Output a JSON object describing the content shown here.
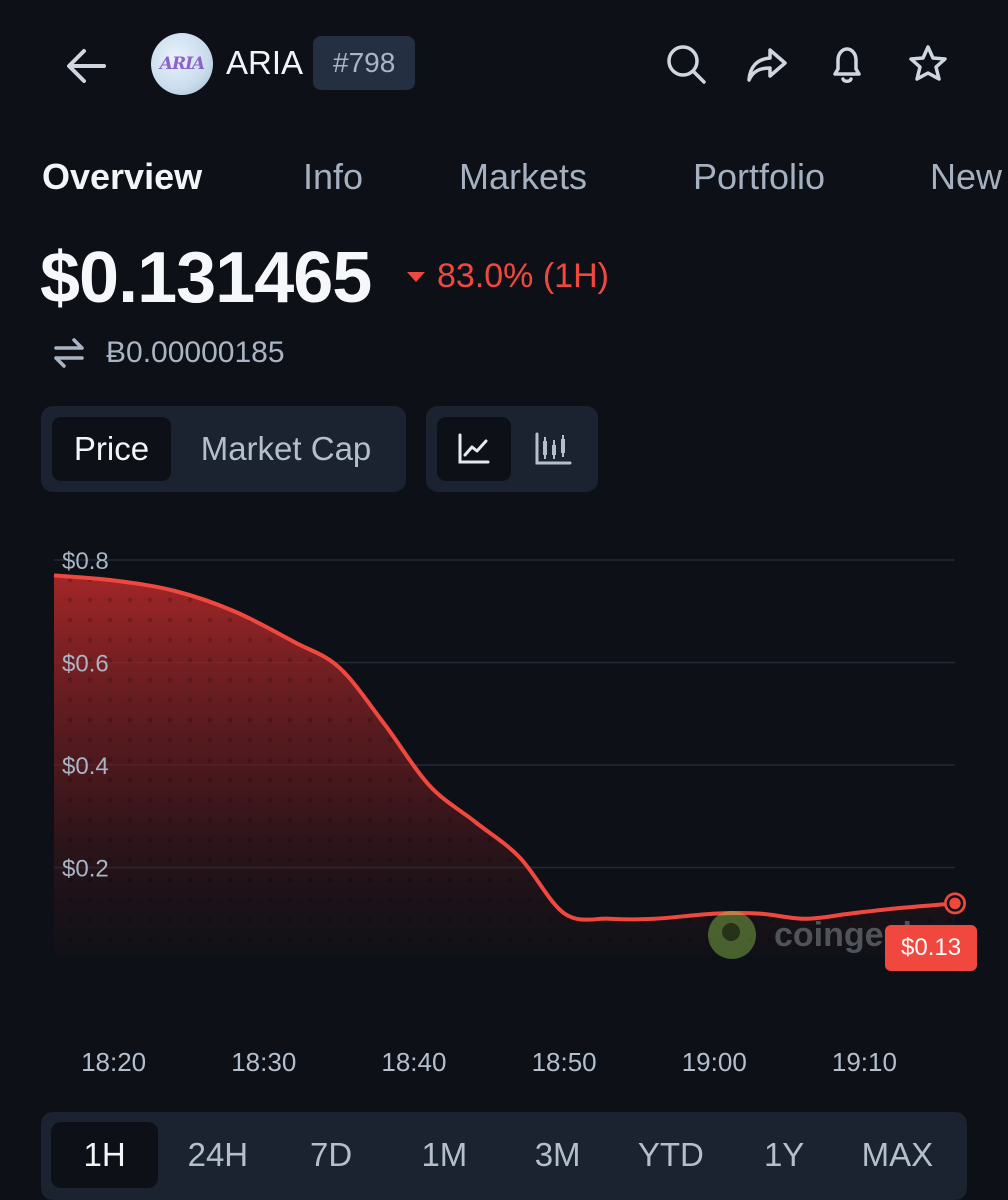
{
  "header": {
    "coin_logo_text": "ARIA",
    "coin_name": "ARIA",
    "rank": "#798",
    "icons": [
      "back-arrow-icon",
      "search-icon",
      "share-icon",
      "bell-icon",
      "star-icon"
    ]
  },
  "tabs": [
    {
      "label": "Overview",
      "active": true
    },
    {
      "label": "Info",
      "active": false
    },
    {
      "label": "Markets",
      "active": false
    },
    {
      "label": "Portfolio",
      "active": false
    },
    {
      "label": "New",
      "active": false
    }
  ],
  "price": {
    "value": "$0.131465",
    "change": "83.0% (1H)",
    "direction": "down",
    "btc_value": "Ƀ0.00000185"
  },
  "toggles": {
    "metric": [
      {
        "label": "Price",
        "active": true
      },
      {
        "label": "Market Cap",
        "active": false
      }
    ],
    "chart_type": [
      {
        "icon": "line-chart-icon",
        "active": true
      },
      {
        "icon": "candlestick-chart-icon",
        "active": false
      }
    ]
  },
  "chart_data": {
    "type": "area",
    "x": [
      "18:16",
      "18:20",
      "18:24",
      "18:28",
      "18:32",
      "18:35",
      "18:38",
      "18:41",
      "18:44",
      "18:47",
      "18:50",
      "18:53",
      "18:56",
      "19:00",
      "19:03",
      "19:06",
      "19:09",
      "19:12",
      "19:16"
    ],
    "y": [
      0.77,
      0.76,
      0.74,
      0.7,
      0.64,
      0.59,
      0.48,
      0.36,
      0.29,
      0.22,
      0.11,
      0.1,
      0.1,
      0.11,
      0.11,
      0.1,
      0.11,
      0.12,
      0.13
    ],
    "x_ticks": [
      "18:20",
      "18:30",
      "18:40",
      "18:50",
      "19:00",
      "19:10"
    ],
    "y_ticks": [
      "$0.8",
      "$0.6",
      "$0.4",
      "$0.2"
    ],
    "y_tick_values": [
      0.8,
      0.6,
      0.4,
      0.2
    ],
    "ylim": [
      0.07,
      0.8
    ],
    "last_label": "$0.13",
    "line_color": "#f0483e",
    "grid": true,
    "watermark": "coingecko"
  },
  "ranges": [
    {
      "label": "1H",
      "active": true
    },
    {
      "label": "24H",
      "active": false
    },
    {
      "label": "7D",
      "active": false
    },
    {
      "label": "1M",
      "active": false
    },
    {
      "label": "3M",
      "active": false
    },
    {
      "label": "YTD",
      "active": false
    },
    {
      "label": "1Y",
      "active": false
    },
    {
      "label": "MAX",
      "active": false
    }
  ]
}
